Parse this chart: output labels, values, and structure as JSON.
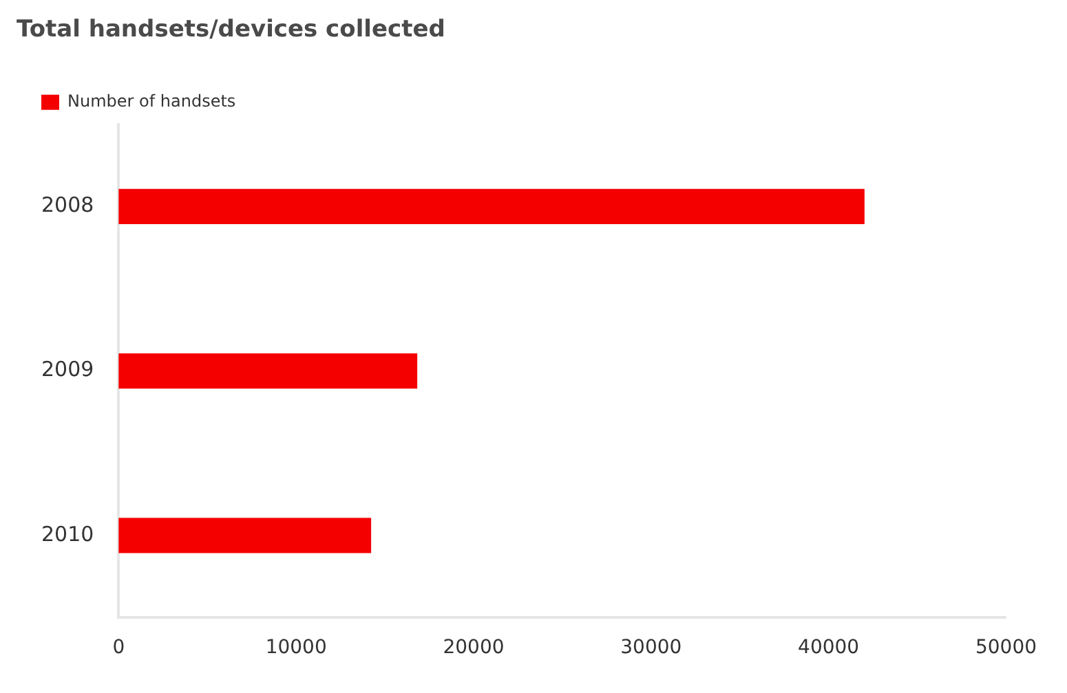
{
  "chart_data": {
    "type": "bar",
    "orientation": "horizontal",
    "title": "Total handsets/devices collected",
    "categories": [
      "2008",
      "2009",
      "2010"
    ],
    "series": [
      {
        "name": "Number of handsets",
        "color": "#f50000",
        "values": [
          42000,
          16800,
          14200
        ]
      }
    ],
    "xlim": [
      0,
      50000
    ],
    "xticks": [
      0,
      10000,
      20000,
      30000,
      40000,
      50000
    ],
    "grid": false,
    "legend": "top left"
  }
}
